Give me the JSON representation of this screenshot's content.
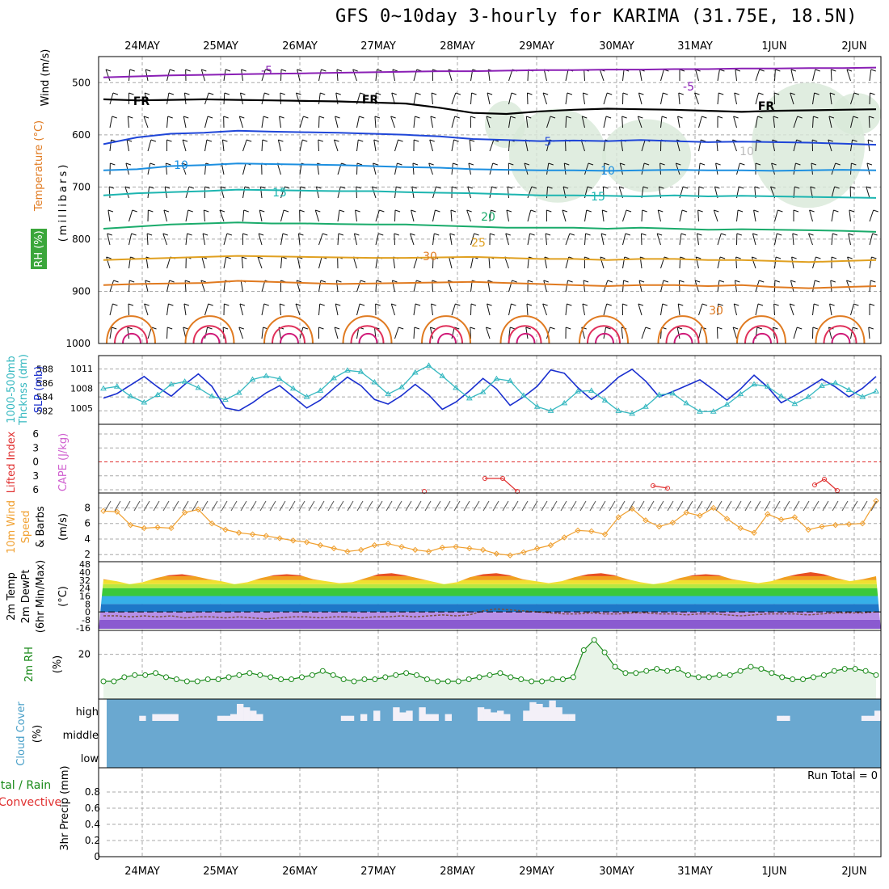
{
  "title": "GFS 0~10day 3-hourly for KARIMA (31.75E, 18.5N)",
  "date_labels": [
    "24MAY",
    "25MAY",
    "26MAY",
    "27MAY",
    "28MAY",
    "29MAY",
    "30MAY",
    "31MAY",
    "1JUN",
    "2JUN"
  ],
  "panel_labels": {
    "upper": [
      "Wind (m/s)",
      "Temperature (°C)",
      "RH (%)",
      "(millibars)"
    ],
    "thickness": [
      "1000-500mb",
      "Thcknss (dm)",
      "SLP (mb)"
    ],
    "cape": [
      "Lifted Index",
      "CAPE (J/kg)"
    ],
    "wind10": [
      "10m Wind",
      "Speed",
      "& Barbs",
      "(m/s)"
    ],
    "temp2m": [
      "2m Temp",
      "2m DewPt",
      "(6hr Min/Max)",
      "(°C)"
    ],
    "rh2m": [
      "2m RH",
      "(%)"
    ],
    "cloud": [
      "Cloud Cover",
      "(%)"
    ],
    "precip": [
      "Total / Rain",
      "Convective",
      "3hr Precip (mm)"
    ]
  },
  "contour_labels": [
    "-5",
    "-5",
    "FR",
    "FR",
    "FR",
    "5",
    "10",
    "10",
    "15",
    "15",
    "20",
    "25",
    "30",
    "30",
    "10"
  ],
  "run_total": "Run Total = 0",
  "colors": {
    "grid": "#a8a8a8",
    "wind_barb": "#000000",
    "temp_minus5": "#8a1fb5",
    "temp_fr": "#000000",
    "temp_5": "#1f46d8",
    "temp_10": "#1c8fe0",
    "temp_15": "#1db5b0",
    "temp_20": "#1aab6b",
    "temp_25": "#e0a020",
    "temp_30": "#e07a20",
    "temp_35": "#e0305a",
    "rh_fill": "#d8e8d8",
    "slp": "#1a2fcf",
    "thickness": "#35b8c0",
    "lifted_index": "#e03030",
    "cape": "#d060d0",
    "wind10": "#f0a030",
    "rh2m": "#1a8a1a",
    "rh2m_fill": "#e8f4e8",
    "cloud_bg": "#6aa8d0",
    "cloud_clear": "#f3f0f8"
  },
  "chart_data": [
    {
      "type": "line",
      "panel": "upper-air cross section",
      "ylabel": "(millibars)",
      "y_ticks": [
        "500",
        "600",
        "700",
        "800",
        "900",
        "1000"
      ],
      "ylim": [
        1000,
        450
      ],
      "contours": [
        {
          "label": "-5",
          "level_mb": [
            490,
            488,
            486,
            485,
            484,
            483,
            482,
            481,
            480,
            479,
            478,
            478,
            477,
            476,
            476,
            475,
            475,
            474,
            474,
            473,
            473,
            472,
            472,
            471
          ]
        },
        {
          "label": "FR",
          "level_mb": [
            532,
            534,
            533,
            532,
            533,
            534,
            535,
            536,
            538,
            540,
            548,
            558,
            560,
            555,
            552,
            550,
            551,
            552,
            554,
            556,
            554,
            553,
            552,
            551
          ]
        },
        {
          "label": "5",
          "level_mb": [
            618,
            605,
            598,
            596,
            592,
            594,
            595,
            596,
            598,
            600,
            603,
            608,
            610,
            612,
            611,
            612,
            610,
            612,
            614,
            613,
            614,
            615,
            617,
            619
          ]
        },
        {
          "label": "10",
          "level_mb": [
            668,
            666,
            660,
            658,
            655,
            656,
            657,
            658,
            660,
            662,
            663,
            666,
            667,
            668,
            668,
            669,
            668,
            667,
            668,
            668,
            669,
            668,
            667,
            668
          ]
        },
        {
          "label": "15",
          "level_mb": [
            716,
            712,
            710,
            708,
            705,
            706,
            707,
            708,
            708,
            710,
            711,
            712,
            714,
            716,
            716,
            717,
            718,
            716,
            718,
            717,
            718,
            719,
            720,
            721
          ]
        },
        {
          "label": "20",
          "level_mb": [
            780,
            776,
            772,
            770,
            768,
            770,
            770,
            771,
            772,
            772,
            774,
            776,
            778,
            778,
            778,
            780,
            778,
            780,
            782,
            781,
            782,
            783,
            784,
            786
          ]
        },
        {
          "label": "25",
          "level_mb": [
            840,
            838,
            836,
            834,
            832,
            833,
            834,
            835,
            836,
            836,
            835,
            834,
            836,
            838,
            838,
            840,
            838,
            838,
            840,
            840,
            842,
            844,
            842,
            840
          ]
        },
        {
          "label": "30",
          "level_mb": [
            888,
            886,
            885,
            884,
            880,
            882,
            884,
            886,
            885,
            884,
            883,
            882,
            884,
            886,
            888,
            890,
            888,
            888,
            890,
            888,
            892,
            894,
            892,
            890
          ]
        }
      ]
    },
    {
      "type": "line",
      "panel": "thickness / SLP",
      "y_ticks_thickness": [
        "582",
        "584",
        "586",
        "588"
      ],
      "y_ticks_slp": [
        "1005",
        "1008",
        "1011"
      ],
      "series": [
        {
          "name": "SLP (mb)",
          "values": [
            1006.5,
            1007.2,
            1008.5,
            1009.8,
            1008.2,
            1006.8,
            1008.6,
            1010.2,
            1008.3,
            1005.0,
            1004.6,
            1005.8,
            1007.3,
            1008.4,
            1006.7,
            1005.0,
            1006.2,
            1008.0,
            1009.7,
            1008.4,
            1006.3,
            1005.6,
            1006.9,
            1008.6,
            1007.0,
            1004.8,
            1005.9,
            1007.6,
            1009.5,
            1007.9,
            1005.4,
            1006.7,
            1008.3,
            1010.8,
            1010.3,
            1008.1,
            1006.3,
            1007.8,
            1009.7,
            1010.9,
            1009.1,
            1006.7,
            1007.5,
            1008.4,
            1009.3,
            1007.8,
            1006.2,
            1007.9,
            1010.0,
            1008.2,
            1005.8,
            1006.9,
            1008.1,
            1009.4,
            1008.2,
            1006.7,
            1008.0,
            1009.8
          ]
        },
        {
          "name": "1000-500mb Thcknss (dm)",
          "values": [
            585.2,
            585.5,
            584.1,
            583.2,
            584.3,
            585.8,
            586.2,
            585.3,
            584.1,
            583.6,
            584.6,
            586.5,
            587.0,
            586.6,
            585.2,
            584.0,
            584.9,
            586.7,
            587.8,
            587.6,
            586.1,
            584.4,
            585.4,
            587.5,
            588.5,
            587.0,
            585.3,
            583.8,
            584.7,
            586.6,
            586.3,
            584.2,
            582.6,
            582.0,
            583.1,
            584.8,
            584.9,
            583.5,
            582.0,
            581.6,
            582.6,
            584.3,
            584.5,
            583.1,
            581.9,
            581.9,
            582.9,
            584.4,
            585.8,
            585.5,
            584.1,
            583.0,
            584.0,
            585.6,
            586.0,
            585.0,
            584.0,
            584.8
          ]
        }
      ]
    },
    {
      "type": "line",
      "panel": "Lifted Index / CAPE",
      "y_ticks": [
        "6",
        "3",
        "0",
        "3",
        "6"
      ],
      "series": [
        {
          "name": "Lifted Index",
          "x": [
            "27MAY",
            "28MAY",
            "28MAY",
            "29MAY",
            "30MAY",
            "31MAY",
            "1JUN",
            "2JUN"
          ],
          "values": [
            5.8,
            6.0,
            4.4,
            6.0,
            4.8,
            5.0,
            4.5,
            5.6
          ]
        }
      ]
    },
    {
      "type": "line",
      "panel": "10m Wind",
      "ylabel": "(m/s)",
      "y_ticks": [
        "2",
        "4",
        "6",
        "8"
      ],
      "series": [
        {
          "name": "10m Wind Speed",
          "values": [
            7.6,
            7.5,
            5.8,
            5.4,
            5.5,
            5.4,
            7.4,
            7.8,
            6.0,
            5.2,
            4.8,
            4.6,
            4.4,
            4.1,
            3.8,
            3.6,
            3.2,
            2.8,
            2.4,
            2.6,
            3.2,
            3.4,
            3.0,
            2.6,
            2.4,
            2.9,
            3.0,
            2.8,
            2.6,
            2.1,
            1.9,
            2.3,
            2.8,
            3.2,
            4.2,
            5.1,
            5.0,
            4.6,
            6.8,
            7.9,
            6.4,
            5.6,
            6.1,
            7.4,
            7.0,
            8.0,
            6.6,
            5.4,
            4.8,
            7.2,
            6.5,
            6.8,
            5.2,
            5.6,
            5.8,
            5.9,
            6.0,
            8.9
          ]
        }
      ]
    },
    {
      "type": "area",
      "panel": "2m Temp / DewPt",
      "ylabel": "(°C)",
      "y_ticks": [
        "48",
        "40",
        "32",
        "24",
        "16",
        "8",
        "0",
        "-8",
        "-16"
      ],
      "series": [
        {
          "name": "2m Temp",
          "values": [
            33,
            31,
            28,
            30,
            34,
            37,
            38,
            36,
            33,
            31,
            28,
            30,
            34,
            37,
            38,
            37,
            33,
            31,
            29,
            30,
            34,
            38,
            39,
            37,
            34,
            31,
            28,
            30,
            35,
            38,
            39,
            37,
            33,
            31,
            29,
            31,
            35,
            38,
            39,
            37,
            33,
            30,
            28,
            30,
            34,
            37,
            38,
            37,
            33,
            31,
            29,
            31,
            35,
            38,
            40,
            38,
            34,
            31,
            33,
            36
          ]
        },
        {
          "name": "2m DewPt",
          "values": [
            -4,
            -4,
            -5,
            -4,
            -5,
            -4,
            -6,
            -5,
            -5,
            -6,
            -5,
            -6,
            -7,
            -6,
            -5,
            -5,
            -6,
            -5,
            -5,
            -6,
            -5,
            -5,
            -4,
            -5,
            -4,
            -3,
            -4,
            -3,
            1,
            3,
            2,
            1,
            0,
            -1,
            -2,
            -2,
            -1,
            -2,
            -2,
            -1,
            -1,
            -2,
            -2,
            -3,
            -2,
            -2,
            -3,
            -4,
            -3,
            -2,
            -2,
            -2,
            -3,
            -2,
            -1,
            -1,
            -1,
            0
          ]
        }
      ]
    },
    {
      "type": "line",
      "panel": "2m RH",
      "ylabel": "(%)",
      "y_ticks": [
        "20"
      ],
      "series": [
        {
          "name": "2m RH",
          "values": [
            7,
            7,
            9,
            10,
            10,
            11,
            9,
            8,
            7,
            7,
            8,
            8,
            9,
            10,
            11,
            10,
            9,
            8,
            8,
            9,
            10,
            12,
            10,
            8,
            7,
            8,
            8,
            9,
            10,
            11,
            10,
            8,
            7,
            7,
            7,
            8,
            9,
            10,
            11,
            9,
            8,
            7,
            7,
            8,
            8,
            9,
            22,
            27,
            21,
            14,
            11,
            11,
            12,
            13,
            12,
            13,
            10,
            9,
            9,
            10,
            10,
            12,
            14,
            13,
            11,
            9,
            8,
            8,
            9,
            10,
            12,
            13,
            13,
            12,
            10
          ]
        }
      ]
    },
    {
      "type": "bar",
      "panel": "Cloud Cover",
      "ylabel": "(%)",
      "y_ticks": [
        "high",
        "middle",
        "low"
      ],
      "series": [
        {
          "name": "high cloud",
          "values": [
            0,
            0,
            0,
            0,
            0,
            15,
            0,
            20,
            20,
            20,
            20,
            0,
            0,
            0,
            0,
            0,
            0,
            15,
            15,
            20,
            50,
            40,
            30,
            20,
            0,
            0,
            0,
            0,
            0,
            0,
            0,
            0,
            0,
            0,
            0,
            0,
            15,
            15,
            0,
            20,
            0,
            30,
            0,
            0,
            40,
            25,
            30,
            0,
            40,
            20,
            20,
            0,
            20,
            0,
            0,
            0,
            0,
            40,
            35,
            25,
            30,
            20,
            0,
            0,
            30,
            55,
            50,
            40,
            60,
            40,
            20,
            20,
            0,
            0,
            0,
            0,
            0,
            0,
            0,
            0,
            0,
            0,
            0,
            0,
            0,
            0,
            0,
            0,
            0,
            0,
            0,
            0,
            0,
            0,
            0,
            0,
            0,
            0,
            0,
            0,
            0,
            0,
            0,
            15,
            15,
            0,
            0,
            0,
            0,
            0,
            0,
            0,
            0,
            0,
            0,
            0,
            15,
            15,
            30
          ]
        }
      ]
    },
    {
      "type": "bar",
      "panel": "3hr Precip",
      "ylabel": "3hr Precip (mm)",
      "y_ticks": [
        "0",
        "0.2",
        "0.4",
        "0.6",
        "0.8"
      ],
      "ylim": [
        0,
        1
      ],
      "series": [
        {
          "name": "Total / Rain",
          "values": []
        },
        {
          "name": "Convective",
          "values": []
        }
      ]
    }
  ]
}
